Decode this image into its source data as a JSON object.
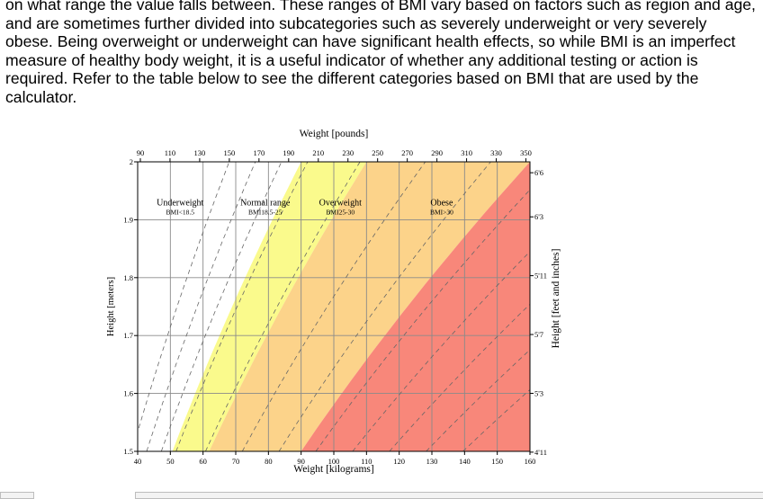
{
  "article": {
    "paragraph": "on what range the value falls between. These ranges of BMI vary based on factors such as region and age, and are sometimes further divided into subcategories such as severely underweight or very severely obese. Being overweight or underweight can have significant health effects, so while BMI is an imperfect measure of healthy body weight, it is a useful indicator of whether any additional testing or action is required. Refer to the table below to see the different categories based on BMI that are used by the calculator."
  },
  "chart_data": {
    "type": "area",
    "title": "Weight [pounds]",
    "xlabel": "Weight [kilograms]",
    "ylabel": "Height [meters]",
    "y2label": "Height [feet and inches]",
    "xlim": [
      40,
      160
    ],
    "ylim": [
      1.5,
      2.0
    ],
    "x_ticks": [
      "40",
      "50",
      "60",
      "70",
      "80",
      "90",
      "100",
      "110",
      "120",
      "130",
      "140",
      "150",
      "160"
    ],
    "y_ticks": [
      "1.5",
      "1.6",
      "1.7",
      "1.8",
      "1.9",
      "2"
    ],
    "top_ticks": [
      "90",
      "110",
      "130",
      "150",
      "170",
      "190",
      "210",
      "230",
      "250",
      "270",
      "290",
      "310",
      "330",
      "350"
    ],
    "right_ticks": [
      "4'11",
      "5'3",
      "5'7",
      "5'11",
      "6'3",
      "6'6"
    ],
    "bmi_boundaries": [
      18.5,
      25,
      30
    ],
    "regions": [
      {
        "name": "Underweight",
        "range": "BMI<18.5",
        "color": "#ffffff",
        "label_at": [
          53,
          1.925
        ]
      },
      {
        "name": "Normal range",
        "range": "BMI18.5-25",
        "color": "#fafa8c",
        "label_at": [
          79,
          1.925
        ]
      },
      {
        "name": "Overweight",
        "range": "BMI25-30",
        "color": "#fcd38a",
        "label_at": [
          102,
          1.925
        ]
      },
      {
        "name": "Obese",
        "range": "BMI>30",
        "color": "#f39c8e",
        "label_at": [
          133,
          1.925
        ]
      }
    ],
    "color_band_bmi": [
      22.5,
      27.5,
      40
    ],
    "color_band_colors": [
      "#fafa8c",
      "#fcd38a",
      "#f8877a"
    ],
    "dashed_bmi_lines": [
      17,
      19,
      21,
      23,
      27,
      32,
      37,
      42,
      47,
      52,
      57,
      62
    ]
  }
}
